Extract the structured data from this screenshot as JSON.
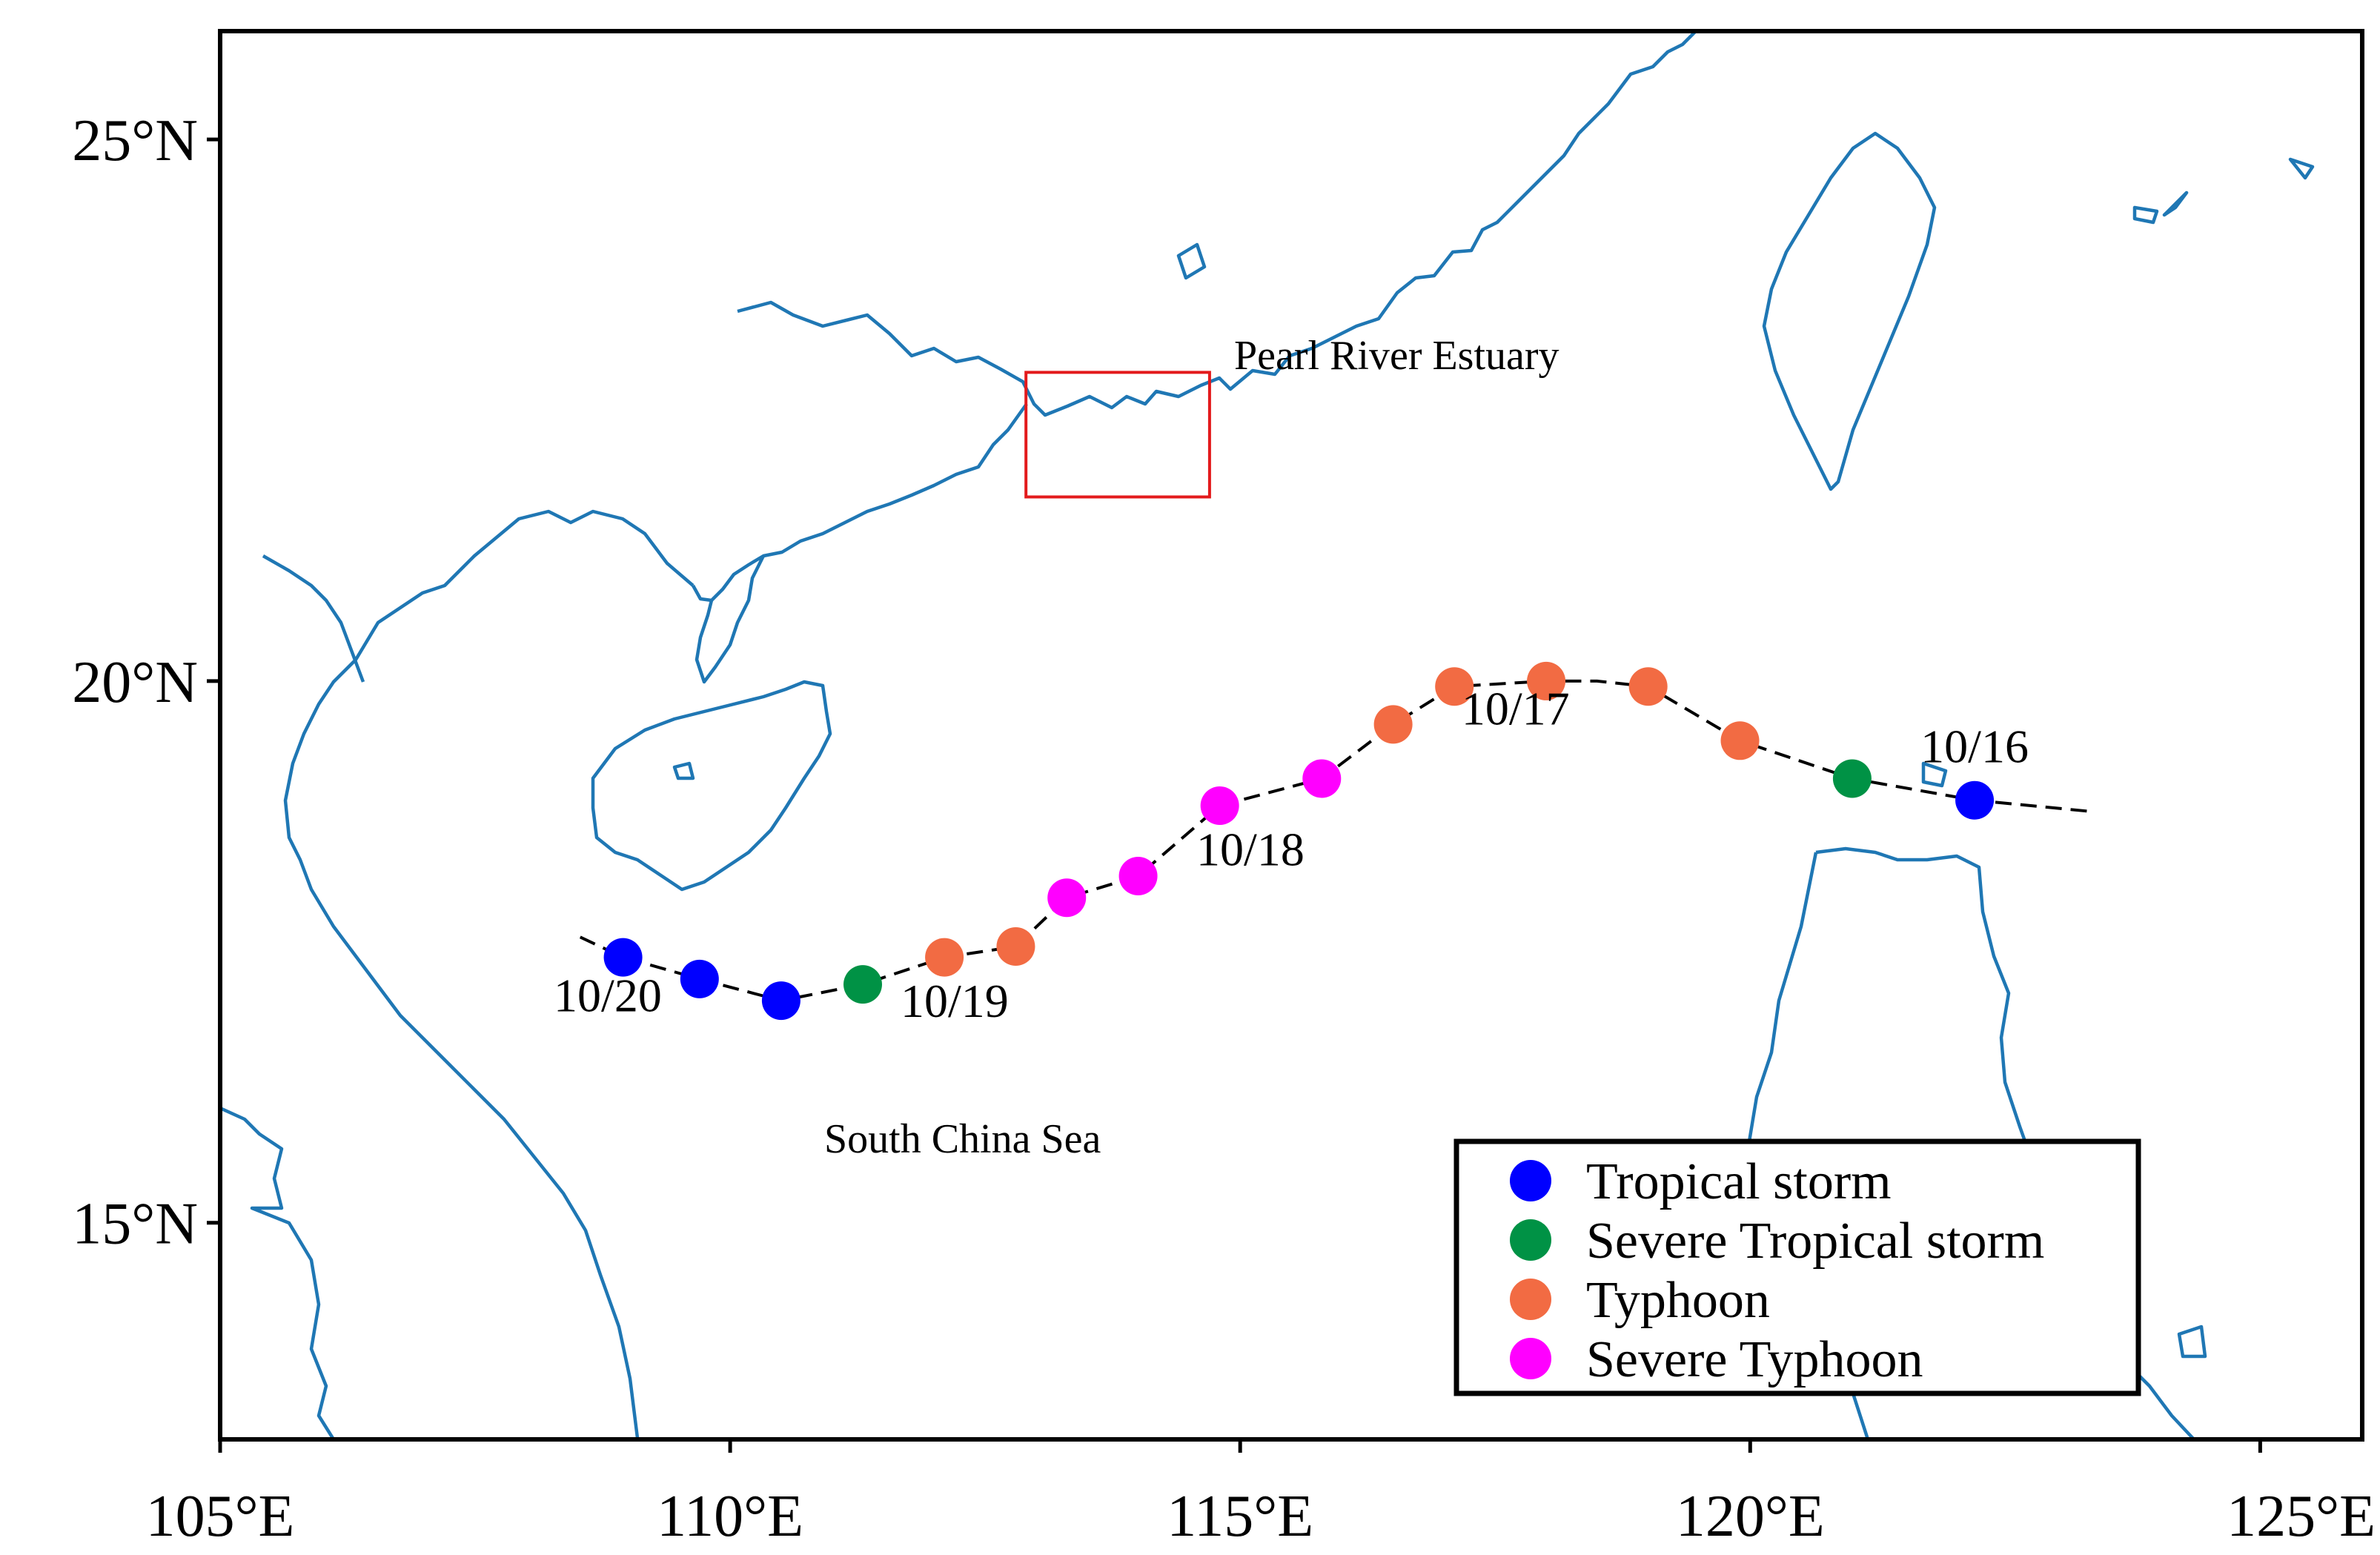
{
  "map": {
    "x_ticks": [
      "105°E",
      "110°E",
      "115°E",
      "120°E",
      "125°E"
    ],
    "y_ticks": [
      "15°N",
      "20°N",
      "25°N"
    ],
    "lon_range": [
      105,
      126
    ],
    "lat_range": [
      13,
      26
    ],
    "tick_lons": [
      105,
      110,
      115,
      120,
      125
    ],
    "tick_lats": [
      15,
      20,
      25
    ],
    "labels": {
      "estuary": "Pearl River Estuary",
      "sea": "South China Sea"
    },
    "estuary_box": {
      "lon": [
        112.9,
        114.7
      ],
      "lat": [
        21.7,
        22.85
      ]
    },
    "colors": {
      "coastline": "#1f77b4",
      "box": "#e31a1c",
      "track": "#000000"
    }
  },
  "chart_data": {
    "type": "scatter",
    "track": {
      "path": [
        [
          123.3,
          18.8
        ],
        [
          122.2,
          18.9
        ],
        [
          121.0,
          19.1
        ],
        [
          119.9,
          19.45
        ],
        [
          119.0,
          19.95
        ],
        [
          118.5,
          20.0
        ],
        [
          118.0,
          20.0
        ],
        [
          117.1,
          19.95
        ],
        [
          116.5,
          19.6
        ],
        [
          115.8,
          19.1
        ],
        [
          114.8,
          18.85
        ],
        [
          114.0,
          18.2
        ],
        [
          113.3,
          18.0
        ],
        [
          112.8,
          17.55
        ],
        [
          112.1,
          17.45
        ],
        [
          111.3,
          17.2
        ],
        [
          110.5,
          17.05
        ],
        [
          109.7,
          17.25
        ],
        [
          108.95,
          17.45
        ],
        [
          108.5,
          17.65
        ]
      ],
      "points": [
        {
          "lon": 122.2,
          "lat": 18.9,
          "category": "Tropical storm"
        },
        {
          "lon": 121.0,
          "lat": 19.1,
          "category": "Severe Tropical storm"
        },
        {
          "lon": 119.9,
          "lat": 19.45,
          "category": "Typhoon"
        },
        {
          "lon": 119.0,
          "lat": 19.95,
          "category": "Typhoon"
        },
        {
          "lon": 118.0,
          "lat": 20.0,
          "category": "Typhoon"
        },
        {
          "lon": 117.1,
          "lat": 19.95,
          "category": "Typhoon"
        },
        {
          "lon": 116.5,
          "lat": 19.6,
          "category": "Typhoon"
        },
        {
          "lon": 115.8,
          "lat": 19.1,
          "category": "Severe Typhoon"
        },
        {
          "lon": 114.8,
          "lat": 18.85,
          "category": "Severe Typhoon"
        },
        {
          "lon": 114.0,
          "lat": 18.2,
          "category": "Severe Typhoon"
        },
        {
          "lon": 113.3,
          "lat": 18.0,
          "category": "Severe Typhoon"
        },
        {
          "lon": 112.8,
          "lat": 17.55,
          "category": "Typhoon"
        },
        {
          "lon": 112.1,
          "lat": 17.45,
          "category": "Typhoon"
        },
        {
          "lon": 111.3,
          "lat": 17.2,
          "category": "Severe Tropical storm"
        },
        {
          "lon": 110.5,
          "lat": 17.05,
          "category": "Tropical storm"
        },
        {
          "lon": 109.7,
          "lat": 17.25,
          "category": "Tropical storm"
        },
        {
          "lon": 108.95,
          "lat": 17.45,
          "category": "Tropical storm"
        }
      ],
      "date_labels": [
        {
          "text": "10/16",
          "lon": 122.2,
          "lat": 19.25
        },
        {
          "text": "10/17",
          "lon": 117.7,
          "lat": 19.6
        },
        {
          "text": "10/18",
          "lon": 115.1,
          "lat": 18.3
        },
        {
          "text": "10/19",
          "lon": 112.2,
          "lat": 16.9
        },
        {
          "text": "10/20",
          "lon": 108.8,
          "lat": 16.95
        }
      ]
    },
    "legend": {
      "placement": "bottom-right",
      "entries": [
        {
          "name": "Tropical storm",
          "color": "#0000ff"
        },
        {
          "name": "Severe Tropical storm",
          "color": "#009245"
        },
        {
          "name": "Typhoon",
          "color": "#f26b43"
        },
        {
          "name": "Severe Typhoon",
          "color": "#ff00ff"
        }
      ]
    }
  }
}
